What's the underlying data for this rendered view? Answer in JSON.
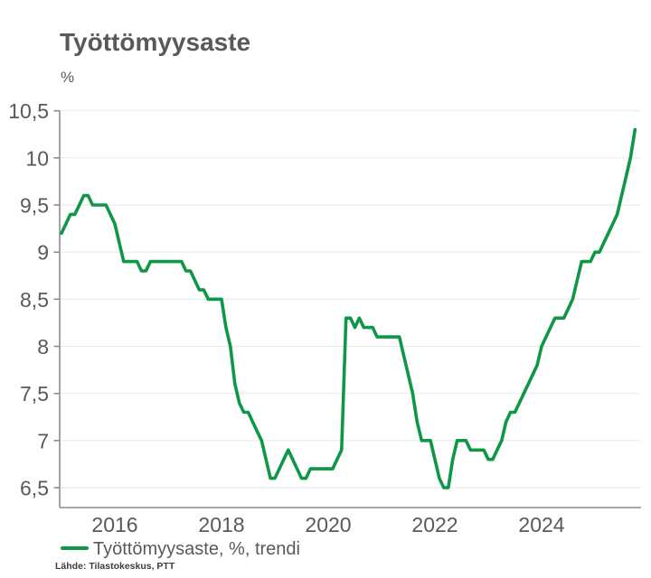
{
  "header": {
    "title": "Työttömyysaste",
    "unit_label": "%"
  },
  "legend": {
    "label": "Työttömyysaste, %, trendi"
  },
  "footer": {
    "source": "Lähde: Tilastokeskus, PTT"
  },
  "colors": {
    "line": "#0f9748",
    "grid": "#ebebeb",
    "axis": "#8c8c8c",
    "tick_text": "#595959",
    "title_text": "#595959",
    "source_text": "#3d3d3d"
  },
  "chart_data": {
    "type": "line",
    "title": "Työttömyysaste",
    "ylabel": "%",
    "xlabel": "",
    "grid": "horizontal",
    "legend_position": "bottom-left",
    "ylim": [
      6.3,
      10.5
    ],
    "x_range_years": [
      2015.0,
      2025.83
    ],
    "y_ticks": {
      "values": [
        10.5,
        10,
        9.5,
        9,
        8.5,
        8,
        7.5,
        7,
        6.5
      ],
      "labels": [
        "10,5",
        "10",
        "9,5",
        "9",
        "8,5",
        "8",
        "7,5",
        "7",
        "6,5"
      ]
    },
    "x_ticks": {
      "labels": [
        "2016",
        "2018",
        "2020",
        "2022",
        "2024"
      ],
      "month_indices": [
        12,
        36,
        60,
        84,
        108
      ]
    },
    "series": [
      {
        "name": "Työttömyysaste, %, trendi",
        "start": "2015-01",
        "frequency": "monthly",
        "values": [
          9.2,
          9.3,
          9.4,
          9.4,
          9.5,
          9.6,
          9.6,
          9.5,
          9.5,
          9.5,
          9.5,
          9.4,
          9.3,
          9.1,
          8.9,
          8.9,
          8.9,
          8.9,
          8.8,
          8.8,
          8.9,
          8.9,
          8.9,
          8.9,
          8.9,
          8.9,
          8.9,
          8.9,
          8.8,
          8.8,
          8.7,
          8.6,
          8.6,
          8.5,
          8.5,
          8.5,
          8.5,
          8.2,
          8.0,
          7.6,
          7.4,
          7.3,
          7.3,
          7.2,
          7.1,
          7.0,
          6.8,
          6.6,
          6.6,
          6.7,
          6.8,
          6.9,
          6.8,
          6.7,
          6.6,
          6.6,
          6.7,
          6.7,
          6.7,
          6.7,
          6.7,
          6.7,
          6.8,
          6.9,
          8.3,
          8.3,
          8.2,
          8.3,
          8.2,
          8.2,
          8.2,
          8.1,
          8.1,
          8.1,
          8.1,
          8.1,
          8.1,
          7.9,
          7.7,
          7.5,
          7.2,
          7.0,
          7.0,
          7.0,
          6.8,
          6.6,
          6.5,
          6.5,
          6.8,
          7.0,
          7.0,
          7.0,
          6.9,
          6.9,
          6.9,
          6.9,
          6.8,
          6.8,
          6.9,
          7.0,
          7.2,
          7.3,
          7.3,
          7.4,
          7.5,
          7.6,
          7.7,
          7.8,
          8.0,
          8.1,
          8.2,
          8.3,
          8.3,
          8.3,
          8.4,
          8.5,
          8.7,
          8.9,
          8.9,
          8.9,
          9.0,
          9.0,
          9.1,
          9.2,
          9.3,
          9.4,
          9.6,
          9.8,
          10.0,
          10.3
        ]
      }
    ]
  }
}
